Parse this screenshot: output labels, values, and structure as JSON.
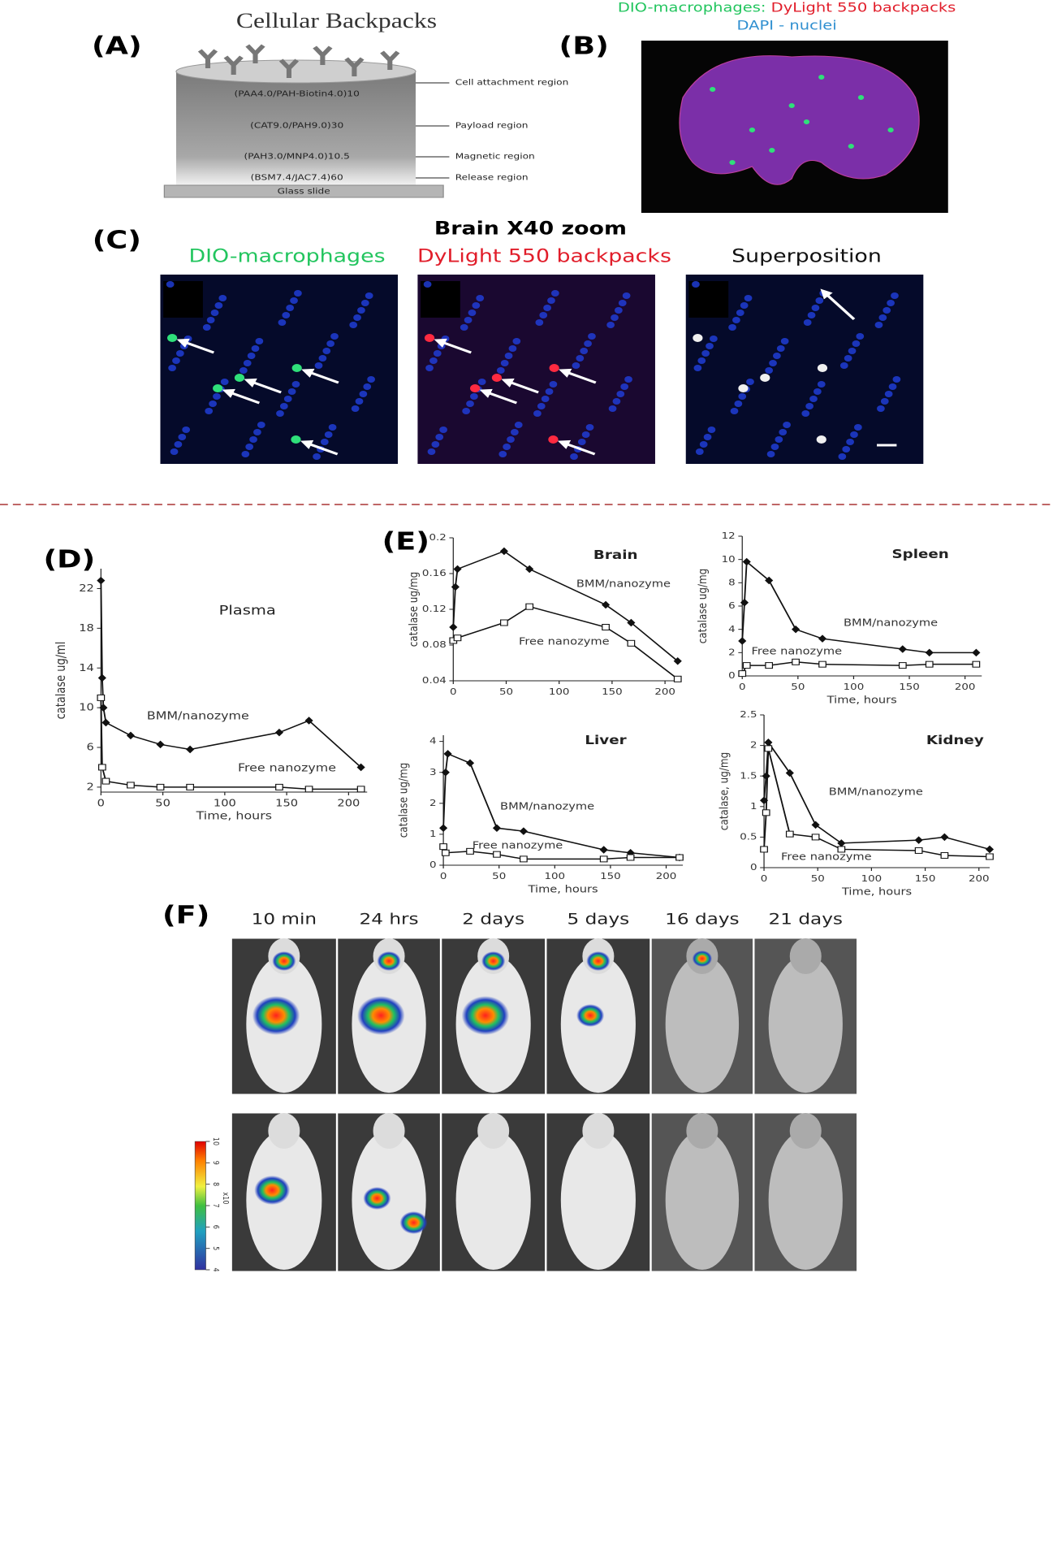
{
  "panel_labels": [
    "(A)",
    "(B)",
    "(C)",
    "(D)",
    "(E)",
    "(F)"
  ],
  "panel_a": {
    "title": "Cellular Backpacks",
    "layers": [
      "(PAA4.0/PAH-Biotin4.0)10",
      "(CAT9.0/PAH9.0)30",
      "(PAH3.0/MNP4.0)10.5",
      "(BSM7.4/JAC7.4)60"
    ],
    "slide": "Glass slide",
    "regions": [
      "Cell attachment region",
      "Payload region",
      "Magnetic region",
      "Release region"
    ]
  },
  "panel_b": {
    "legend_green": "DIO-macrophages: ",
    "legend_red": "DyLight 550 backpacks",
    "legend_blue": "DAPI - nuclei"
  },
  "panel_c": {
    "title": "Brain X40 zoom",
    "subtitles": [
      "DIO-macrophages",
      "DyLight 550 backpacks",
      "Superposition"
    ]
  },
  "panel_f": {
    "times": [
      "10 min",
      "24 hrs",
      "2 days",
      "5 days",
      "16 days",
      "21 days"
    ],
    "colorbar_ticks": [
      4,
      5,
      6,
      7,
      8,
      9,
      10
    ],
    "colorbar_unit": "x10"
  },
  "chart_data": [
    {
      "type": "line",
      "title": "Plasma",
      "xlabel": "Time, hours",
      "ylabel": "catalase ug/ml",
      "xlim": [
        0,
        215
      ],
      "ylim": [
        1.5,
        24
      ],
      "xticks": [
        0,
        50,
        100,
        150,
        200
      ],
      "yticks": [
        2,
        6,
        10,
        14,
        18,
        22
      ],
      "series": [
        {
          "name": "BMM/nanozyme",
          "color": "#111111",
          "marker": "diamond",
          "x": [
            0,
            1,
            2,
            4,
            24,
            48,
            72,
            144,
            168,
            210
          ],
          "values": [
            22.8,
            13,
            10,
            8.5,
            7.2,
            6.3,
            5.8,
            7.5,
            8.7,
            4
          ]
        },
        {
          "name": "Free nanozyme",
          "color": "#111111",
          "marker": "square",
          "x": [
            0,
            1,
            4,
            24,
            48,
            72,
            144,
            168,
            210
          ],
          "values": [
            11,
            4,
            2.6,
            2.2,
            2,
            2,
            2,
            1.8,
            1.8
          ]
        }
      ]
    },
    {
      "type": "line",
      "title": "Brain",
      "ylabel": "catalase ug/mg",
      "xlim": [
        0,
        215
      ],
      "ylim": [
        0.04,
        0.2
      ],
      "xticks": [
        0,
        50,
        100,
        150,
        200
      ],
      "yticks": [
        0.04,
        0.08,
        0.12,
        0.16,
        {
          "value": 0.2,
          "label": "0.2"
        }
      ],
      "series": [
        {
          "name": "BMM/nanozyme",
          "color": "#111111",
          "marker": "diamond",
          "x": [
            0,
            2,
            4,
            48,
            72,
            144,
            168,
            212
          ],
          "values": [
            0.1,
            0.145,
            0.165,
            0.185,
            0.165,
            0.125,
            0.105,
            0.062
          ]
        },
        {
          "name": "Free nanozyme",
          "color": "#111111",
          "marker": "square",
          "x": [
            0,
            4,
            48,
            72,
            144,
            168,
            212
          ],
          "values": [
            0.085,
            0.088,
            0.105,
            0.123,
            0.1,
            0.082,
            0.042
          ]
        }
      ]
    },
    {
      "type": "line",
      "title": "Spleen",
      "xlabel": "Time, hours",
      "ylabel": "catalase ug/mg",
      "xlim": [
        0,
        215
      ],
      "ylim": [
        0,
        12
      ],
      "xticks": [
        0,
        50,
        100,
        150,
        200
      ],
      "yticks": [
        0,
        2,
        4,
        6,
        8,
        10,
        12
      ],
      "series": [
        {
          "name": "BMM/nanozyme",
          "color": "#111111",
          "marker": "diamond",
          "x": [
            0,
            2,
            4,
            24,
            48,
            72,
            144,
            168,
            210
          ],
          "values": [
            3,
            6.3,
            9.8,
            8.2,
            4,
            3.2,
            2.3,
            2,
            2
          ]
        },
        {
          "name": "Free nanozyme",
          "color": "#111111",
          "marker": "square",
          "x": [
            0,
            4,
            24,
            48,
            72,
            144,
            168,
            210
          ],
          "values": [
            0.2,
            0.9,
            0.9,
            1.2,
            1,
            0.9,
            1,
            1
          ]
        }
      ]
    },
    {
      "type": "line",
      "title": "Liver",
      "xlabel": "Time, hours",
      "ylabel": "catalase ug/mg",
      "xlim": [
        0,
        215
      ],
      "ylim": [
        0,
        4.2
      ],
      "xticks": [
        0,
        50,
        100,
        150,
        200
      ],
      "yticks": [
        0,
        1,
        2,
        3,
        4
      ],
      "series": [
        {
          "name": "BMM/nanozyme",
          "color": "#111111",
          "marker": "diamond",
          "x": [
            0,
            2,
            4,
            24,
            48,
            72,
            144,
            168,
            212
          ],
          "values": [
            1.2,
            3,
            3.6,
            3.3,
            1.2,
            1.1,
            0.5,
            0.4,
            0.25
          ]
        },
        {
          "name": "Free nanozyme",
          "color": "#111111",
          "marker": "square",
          "x": [
            0,
            2,
            24,
            48,
            72,
            144,
            168,
            212
          ],
          "values": [
            0.6,
            0.4,
            0.45,
            0.35,
            0.2,
            0.2,
            0.25,
            0.25
          ]
        }
      ]
    },
    {
      "type": "line",
      "title": "Kidney",
      "xlabel": "Time, hours",
      "ylabel": "catalase, ug/mg",
      "xlim": [
        0,
        210
      ],
      "ylim": [
        0,
        2.5
      ],
      "xticks": [
        0,
        50,
        100,
        150,
        200
      ],
      "yticks": [
        0,
        0.5,
        1,
        1.5,
        2,
        2.5
      ],
      "series": [
        {
          "name": "BMM/nanozyme",
          "color": "#111111",
          "marker": "diamond",
          "x": [
            0,
            2,
            4,
            24,
            48,
            72,
            144,
            168,
            210
          ],
          "values": [
            1.1,
            1.5,
            2.05,
            1.55,
            0.7,
            0.4,
            0.45,
            0.5,
            0.3
          ]
        },
        {
          "name": "Free nanozyme",
          "color": "#111111",
          "marker": "square",
          "x": [
            0,
            2,
            4,
            24,
            48,
            72,
            144,
            168,
            210
          ],
          "values": [
            0.3,
            0.9,
            1.95,
            0.55,
            0.5,
            0.3,
            0.28,
            0.2,
            0.18
          ]
        }
      ]
    }
  ]
}
